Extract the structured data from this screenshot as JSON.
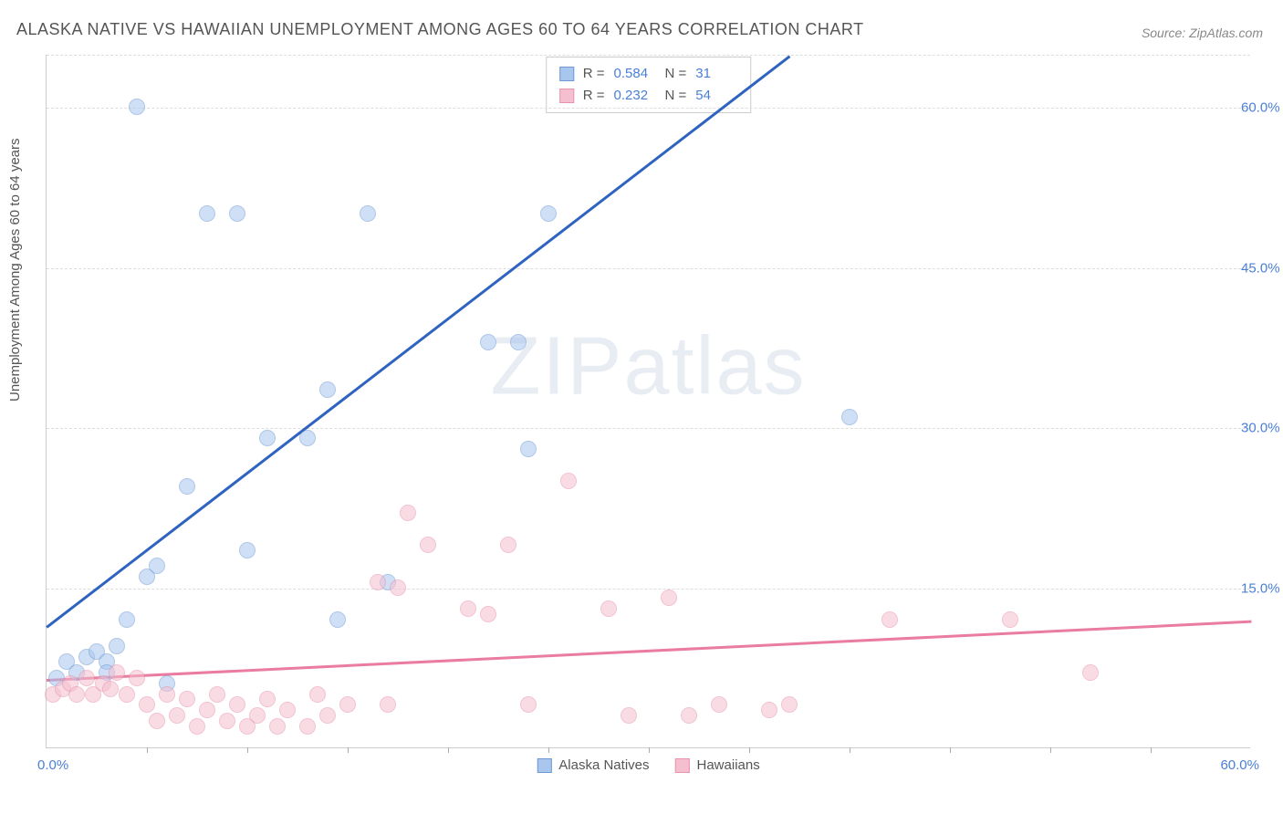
{
  "title": "ALASKA NATIVE VS HAWAIIAN UNEMPLOYMENT AMONG AGES 60 TO 64 YEARS CORRELATION CHART",
  "source": "Source: ZipAtlas.com",
  "ylabel": "Unemployment Among Ages 60 to 64 years",
  "watermark": {
    "bold": "ZIP",
    "light": "atlas"
  },
  "chart": {
    "type": "scatter",
    "xlim": [
      0,
      60
    ],
    "ylim": [
      0,
      65
    ],
    "xtick_labels": {
      "min": "0.0%",
      "max": "60.0%"
    },
    "ytick_values": [
      15,
      30,
      45,
      60
    ],
    "ytick_labels": [
      "15.0%",
      "30.0%",
      "45.0%",
      "60.0%"
    ],
    "xtick_positions": [
      5,
      10,
      15,
      20,
      25,
      30,
      35,
      40,
      45,
      50,
      55
    ],
    "grid_color": "#dddddd",
    "background_color": "#ffffff",
    "marker_radius": 9,
    "marker_opacity": 0.55,
    "series": [
      {
        "name": "Alaska Natives",
        "color_fill": "#a9c6ee",
        "color_stroke": "#6d9ad6",
        "trend": {
          "color": "#2f63c0",
          "x1": 0,
          "y1": 11.5,
          "x2": 37,
          "y2": 65
        },
        "r": "0.584",
        "n": "31",
        "points": [
          [
            0.5,
            6.5
          ],
          [
            1,
            8
          ],
          [
            1.5,
            7
          ],
          [
            2,
            8.5
          ],
          [
            2.5,
            9
          ],
          [
            3,
            8
          ],
          [
            3,
            7
          ],
          [
            3.5,
            9.5
          ],
          [
            4,
            12
          ],
          [
            4.5,
            60
          ],
          [
            5,
            16
          ],
          [
            5.5,
            17
          ],
          [
            6,
            6
          ],
          [
            7,
            24.5
          ],
          [
            8,
            50
          ],
          [
            9.5,
            50
          ],
          [
            10,
            18.5
          ],
          [
            11,
            29
          ],
          [
            13,
            29
          ],
          [
            14,
            33.5
          ],
          [
            14.5,
            12
          ],
          [
            16,
            50
          ],
          [
            17,
            15.5
          ],
          [
            22,
            38
          ],
          [
            23.5,
            38
          ],
          [
            24,
            28
          ],
          [
            25,
            50
          ],
          [
            40,
            31
          ]
        ]
      },
      {
        "name": "Hawaiians",
        "color_fill": "#f5bfcf",
        "color_stroke": "#e893ae",
        "trend": {
          "color": "#e97ca0",
          "x1": 0,
          "y1": 6.5,
          "x2": 60,
          "y2": 12
        },
        "r": "0.232",
        "n": "54",
        "points": [
          [
            0.3,
            5
          ],
          [
            0.8,
            5.5
          ],
          [
            1.2,
            6
          ],
          [
            1.5,
            5
          ],
          [
            2,
            6.5
          ],
          [
            2.3,
            5
          ],
          [
            2.8,
            6
          ],
          [
            3.2,
            5.5
          ],
          [
            3.5,
            7
          ],
          [
            4,
            5
          ],
          [
            4.5,
            6.5
          ],
          [
            5,
            4
          ],
          [
            5.5,
            2.5
          ],
          [
            6,
            5
          ],
          [
            6.5,
            3
          ],
          [
            7,
            4.5
          ],
          [
            7.5,
            2
          ],
          [
            8,
            3.5
          ],
          [
            8.5,
            5
          ],
          [
            9,
            2.5
          ],
          [
            9.5,
            4
          ],
          [
            10,
            2
          ],
          [
            10.5,
            3
          ],
          [
            11,
            4.5
          ],
          [
            11.5,
            2
          ],
          [
            12,
            3.5
          ],
          [
            13,
            2
          ],
          [
            13.5,
            5
          ],
          [
            14,
            3
          ],
          [
            15,
            4
          ],
          [
            16.5,
            15.5
          ],
          [
            17,
            4
          ],
          [
            17.5,
            15
          ],
          [
            18,
            22
          ],
          [
            19,
            19
          ],
          [
            21,
            13
          ],
          [
            22,
            12.5
          ],
          [
            23,
            19
          ],
          [
            24,
            4
          ],
          [
            26,
            25
          ],
          [
            28,
            13
          ],
          [
            29,
            3
          ],
          [
            31,
            14
          ],
          [
            32,
            3
          ],
          [
            33.5,
            4
          ],
          [
            36,
            3.5
          ],
          [
            37,
            4
          ],
          [
            42,
            12
          ],
          [
            48,
            12
          ],
          [
            52,
            7
          ]
        ]
      }
    ]
  },
  "legend": {
    "items": [
      "Alaska Natives",
      "Hawaiians"
    ]
  }
}
